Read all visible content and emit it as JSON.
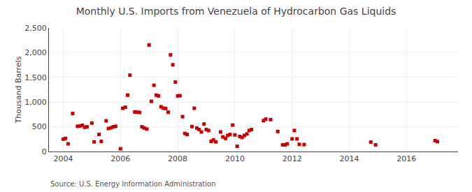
{
  "chart_data": {
    "type": "scatter",
    "title": "Monthly U.S. Imports from Venezuela of Hydrocarbon Gas Liquids",
    "ylabel": "Thousand Barrels",
    "annotations": [
      "Source: U.S. Energy Information Administration"
    ],
    "color": "#cc0000",
    "marker": "square",
    "grid": true,
    "xlim": [
      2003.5,
      2017.8
    ],
    "xticks": [
      2004,
      2006,
      2008,
      2010,
      2012,
      2014,
      2016
    ],
    "ylim": [
      0,
      2500
    ],
    "yticks": [
      0,
      500,
      {
        "value": 1000,
        "label": "1,000"
      },
      {
        "value": 1500,
        "label": "1,500"
      },
      {
        "value": 2000,
        "label": "2,000"
      },
      {
        "value": 2500,
        "label": "2,500"
      }
    ],
    "x": [
      2004.0,
      2004.08,
      2004.17,
      2004.33,
      2004.5,
      2004.58,
      2004.67,
      2004.75,
      2004.83,
      2005.0,
      2005.08,
      2005.25,
      2005.33,
      2005.5,
      2005.58,
      2005.67,
      2005.75,
      2005.83,
      2006.0,
      2006.08,
      2006.17,
      2006.25,
      2006.33,
      2006.5,
      2006.58,
      2006.67,
      2006.75,
      2006.83,
      2006.92,
      2007.0,
      2007.08,
      2007.17,
      2007.25,
      2007.33,
      2007.42,
      2007.5,
      2007.58,
      2007.67,
      2007.75,
      2007.83,
      2007.92,
      2008.0,
      2008.08,
      2008.17,
      2008.25,
      2008.33,
      2008.5,
      2008.58,
      2008.67,
      2008.75,
      2008.83,
      2008.92,
      2009.0,
      2009.08,
      2009.17,
      2009.25,
      2009.33,
      2009.5,
      2009.58,
      2009.67,
      2009.75,
      2009.83,
      2009.92,
      2010.0,
      2010.08,
      2010.17,
      2010.25,
      2010.33,
      2010.42,
      2010.5,
      2010.58,
      2011.0,
      2011.08,
      2011.25,
      2011.5,
      2011.67,
      2011.75,
      2011.83,
      2012.0,
      2012.08,
      2012.17,
      2012.25,
      2012.42,
      2014.75,
      2014.92,
      2017.0,
      2017.08
    ],
    "values": [
      250,
      265,
      155,
      770,
      510,
      515,
      530,
      490,
      500,
      575,
      195,
      345,
      205,
      620,
      465,
      480,
      500,
      510,
      55,
      875,
      895,
      1140,
      1545,
      800,
      795,
      790,
      500,
      475,
      455,
      2155,
      1015,
      1340,
      1140,
      1125,
      905,
      875,
      870,
      795,
      1955,
      1755,
      1405,
      1125,
      1130,
      705,
      365,
      345,
      505,
      875,
      475,
      445,
      395,
      555,
      445,
      425,
      205,
      235,
      195,
      395,
      295,
      265,
      325,
      345,
      535,
      335,
      105,
      305,
      285,
      325,
      355,
      425,
      445,
      625,
      655,
      645,
      405,
      135,
      135,
      155,
      255,
      425,
      255,
      145,
      140,
      190,
      135,
      220,
      200
    ]
  }
}
